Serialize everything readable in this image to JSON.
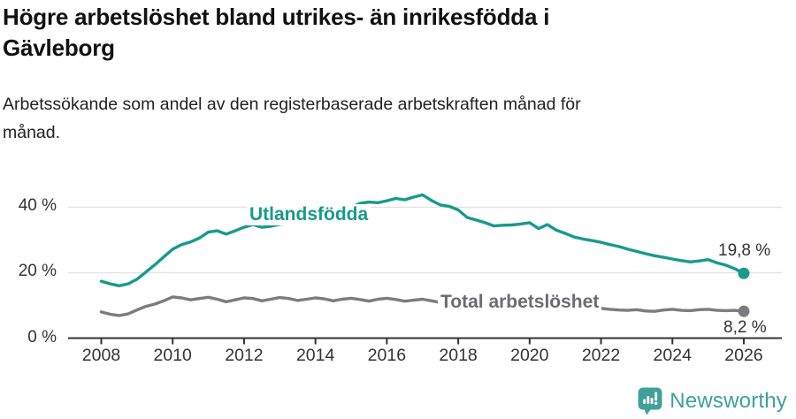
{
  "header": {
    "title_lines": [
      "Högre arbetslöshet bland utrikes- än inrikesfödda i",
      "Gävleborg"
    ],
    "subtitle_lines": [
      "Arbetssökande som andel av den registerbaserade arbetskraften månad för",
      "månad."
    ]
  },
  "footer": {
    "brand": "Newsworthy",
    "brand_color": "#3fa19a",
    "logo_icon": "bar-chart-speech-bubble-icon"
  },
  "chart_data": {
    "type": "line",
    "title": "Högre arbetslöshet bland utrikes- än inrikesfödda i Gävleborg",
    "subtitle": "Arbetssökande som andel av den registerbaserade arbetskraften månad för månad.",
    "unit": "%",
    "x_ticks": [
      "2008",
      "2010",
      "2012",
      "2014",
      "2016",
      "2018",
      "2020",
      "2022",
      "2024",
      "2026"
    ],
    "y_ticks": [
      "0 %",
      "20 %",
      "40 %"
    ],
    "y_tick_values": [
      0,
      20,
      40
    ],
    "x_range": [
      2008,
      2026
    ],
    "y_range": [
      0,
      46
    ],
    "grid": "horizontal-only",
    "grid_color": "#e4e4e4",
    "axis_color": "#333333",
    "x_step_years": 0.25,
    "series": [
      {
        "name": "Utlandsfödda",
        "color": "#179a8c",
        "label_color": "#179a8c",
        "end_value_label": "19,8 %",
        "end_value": 19.8,
        "x_start": 2008,
        "values": [
          17.4,
          16.6,
          16.0,
          16.6,
          18.0,
          20.2,
          22.4,
          24.8,
          27.2,
          28.6,
          29.4,
          30.6,
          32.4,
          32.8,
          31.8,
          32.8,
          33.9,
          34.7,
          33.9,
          34.2,
          34.8,
          35.0,
          35.3,
          35.6,
          36.1,
          36.7,
          37.4,
          38.6,
          40.0,
          41.2,
          41.6,
          41.4,
          42.0,
          42.7,
          42.3,
          43.1,
          43.8,
          42.1,
          40.7,
          40.3,
          39.2,
          36.9,
          36.1,
          35.3,
          34.3,
          34.5,
          34.6,
          34.9,
          35.3,
          33.5,
          34.7,
          33.0,
          32.0,
          30.9,
          30.3,
          29.8,
          29.3,
          28.6,
          28.0,
          27.2,
          26.5,
          25.8,
          25.2,
          24.7,
          24.2,
          23.7,
          23.3,
          23.6,
          24.0,
          23.0,
          22.3,
          21.2,
          19.8
        ]
      },
      {
        "name": "Total arbetslöshet",
        "color": "#7c7c80",
        "label_color": "#6b6b70",
        "end_value_label": "8,2 %",
        "end_value": 8.2,
        "x_start": 2008,
        "values": [
          8.0,
          7.3,
          6.9,
          7.4,
          8.6,
          9.7,
          10.4,
          11.4,
          12.6,
          12.3,
          11.7,
          12.1,
          12.5,
          11.9,
          11.1,
          11.7,
          12.3,
          12.1,
          11.4,
          11.9,
          12.4,
          12.1,
          11.5,
          11.9,
          12.3,
          12.0,
          11.4,
          11.9,
          12.2,
          11.8,
          11.3,
          11.9,
          12.2,
          11.8,
          11.3,
          11.6,
          11.9,
          11.4,
          10.9,
          10.6,
          10.8,
          10.3,
          10.0,
          10.2,
          10.3,
          9.9,
          9.7,
          10.0,
          10.4,
          10.9,
          11.1,
          10.7,
          10.5,
          10.0,
          9.6,
          9.3,
          9.1,
          8.8,
          8.6,
          8.5,
          8.7,
          8.3,
          8.2,
          8.6,
          8.8,
          8.5,
          8.4,
          8.7,
          8.8,
          8.5,
          8.4,
          8.5,
          8.2
        ]
      }
    ]
  }
}
